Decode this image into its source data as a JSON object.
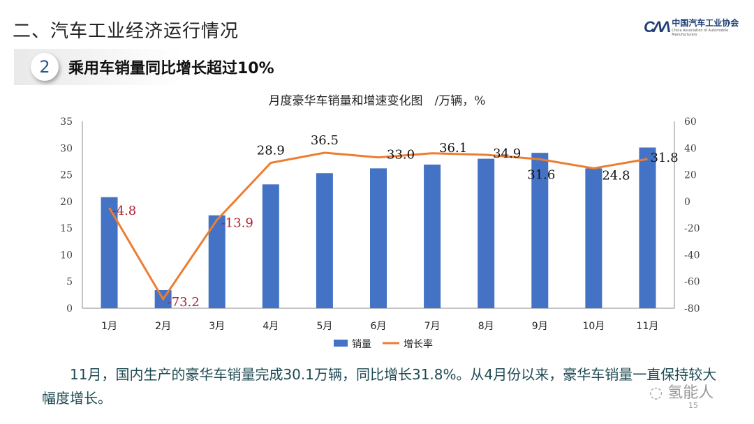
{
  "header": {
    "title": "二、汽车工业经济运行情况"
  },
  "logo": {
    "mark": "CAAM",
    "cn": "中国汽车工业协会",
    "en": "China Association of Automobile Manufacturers"
  },
  "section": {
    "number": "2",
    "title": "乘用车销量同比增长超过10%"
  },
  "chart_data": {
    "type": "bar+line",
    "title": "月度豪华车销量和增速变化图　/万辆，%",
    "categories": [
      "1月",
      "2月",
      "3月",
      "4月",
      "5月",
      "6月",
      "7月",
      "8月",
      "9月",
      "10月",
      "11月"
    ],
    "series": [
      {
        "name": "销量",
        "type": "bar",
        "axis": "left",
        "color": "#4472c4",
        "values": [
          20.8,
          3.4,
          17.4,
          23.2,
          25.3,
          26.2,
          26.9,
          28.0,
          29.1,
          26.2,
          30.1
        ]
      },
      {
        "name": "增长率",
        "type": "line",
        "axis": "right",
        "color": "#ed7d31",
        "values": [
          -4.8,
          -73.2,
          -13.9,
          28.9,
          36.5,
          33.0,
          36.1,
          34.9,
          31.6,
          24.8,
          31.8
        ],
        "labels": [
          "-4.8",
          "-73.2",
          "-13.9",
          "28.9",
          "36.5",
          "33.0",
          "36.1",
          "34.9",
          "31.6",
          "24.8",
          "31.8"
        ]
      }
    ],
    "y_left": {
      "range": [
        0,
        35
      ],
      "ticks": [
        0,
        5,
        10,
        15,
        20,
        25,
        30,
        35
      ]
    },
    "y_right": {
      "range": [
        -80,
        60
      ],
      "ticks": [
        -80,
        -60,
        -40,
        -20,
        0,
        20,
        40,
        60
      ]
    },
    "grid": false,
    "legend": "bottom"
  },
  "footer": {
    "paragraph": "11月，国内生产的豪华车销量完成30.1万辆，同比增长31.8%。从4月份以来，豪华车销量一直保持较大幅度增长。",
    "watermark": "氢能人",
    "page": "15"
  }
}
